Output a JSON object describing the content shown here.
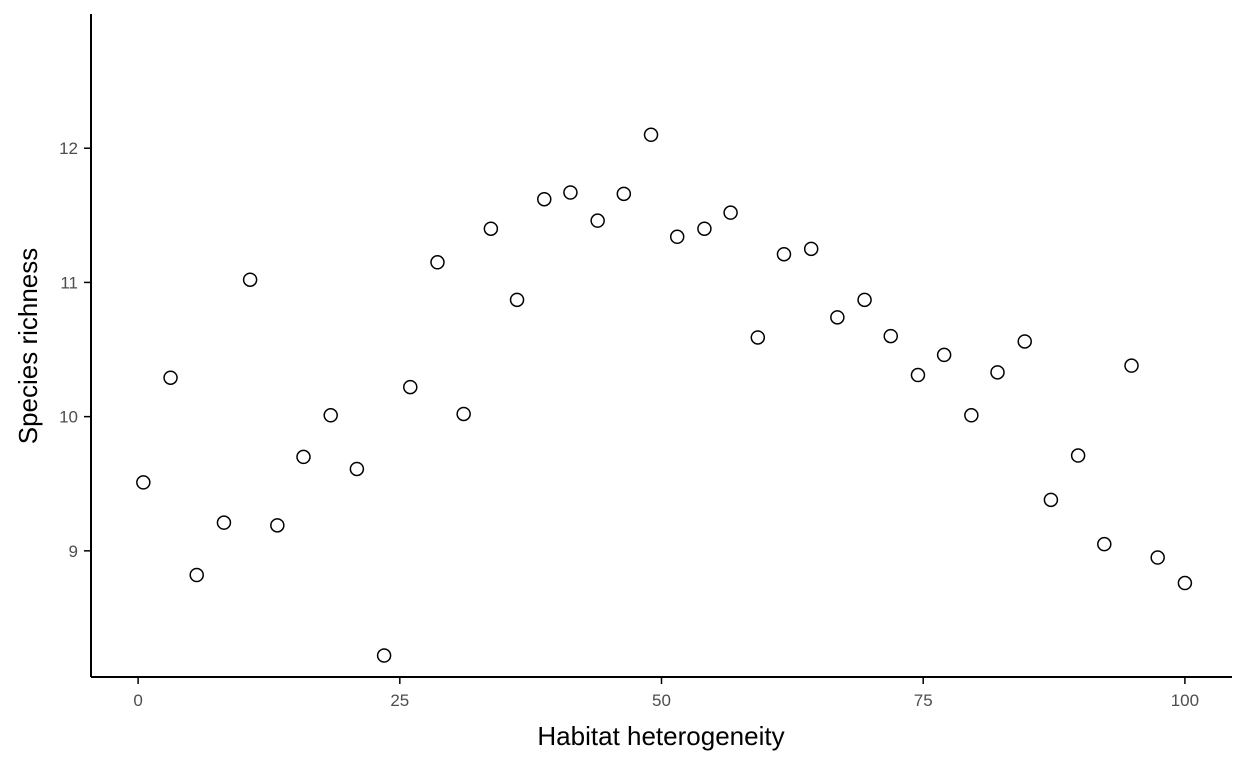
{
  "chart_data": {
    "type": "scatter",
    "title": "",
    "xlabel": "Habitat heterogeneity",
    "ylabel": "Species richness",
    "xlim": [
      -4.5,
      104.5
    ],
    "ylim": [
      8.06,
      13.0
    ],
    "x_ticks": [
      0,
      25,
      50,
      75,
      100
    ],
    "y_ticks": [
      9,
      10,
      11,
      12
    ],
    "grid": false,
    "legend": "none",
    "marker": "open-circle",
    "colors": {
      "point_stroke": "#000000",
      "point_fill": "#ffffff",
      "axis": "#000000",
      "tick_label": "#4d4d4d"
    },
    "points": [
      {
        "x": 0.5,
        "y": 9.51
      },
      {
        "x": 3.1,
        "y": 10.29
      },
      {
        "x": 5.6,
        "y": 8.82
      },
      {
        "x": 8.2,
        "y": 9.21
      },
      {
        "x": 10.7,
        "y": 11.02
      },
      {
        "x": 13.3,
        "y": 9.19
      },
      {
        "x": 15.8,
        "y": 9.7
      },
      {
        "x": 18.4,
        "y": 10.01
      },
      {
        "x": 20.9,
        "y": 9.61
      },
      {
        "x": 23.5,
        "y": 8.22
      },
      {
        "x": 26.0,
        "y": 10.22
      },
      {
        "x": 28.6,
        "y": 11.15
      },
      {
        "x": 31.1,
        "y": 10.02
      },
      {
        "x": 33.7,
        "y": 11.4
      },
      {
        "x": 36.2,
        "y": 10.87
      },
      {
        "x": 38.8,
        "y": 11.62
      },
      {
        "x": 41.3,
        "y": 11.67
      },
      {
        "x": 43.9,
        "y": 11.46
      },
      {
        "x": 46.4,
        "y": 11.66
      },
      {
        "x": 49.0,
        "y": 12.1
      },
      {
        "x": 51.5,
        "y": 11.34
      },
      {
        "x": 54.1,
        "y": 11.4
      },
      {
        "x": 56.6,
        "y": 11.52
      },
      {
        "x": 59.2,
        "y": 10.59
      },
      {
        "x": 61.7,
        "y": 11.21
      },
      {
        "x": 64.3,
        "y": 11.25
      },
      {
        "x": 66.8,
        "y": 10.74
      },
      {
        "x": 69.4,
        "y": 10.87
      },
      {
        "x": 71.9,
        "y": 10.6
      },
      {
        "x": 74.5,
        "y": 10.31
      },
      {
        "x": 77.0,
        "y": 10.46
      },
      {
        "x": 79.6,
        "y": 10.01
      },
      {
        "x": 82.1,
        "y": 10.33
      },
      {
        "x": 84.7,
        "y": 10.56
      },
      {
        "x": 87.2,
        "y": 9.38
      },
      {
        "x": 89.8,
        "y": 9.71
      },
      {
        "x": 92.3,
        "y": 9.05
      },
      {
        "x": 94.9,
        "y": 10.38
      },
      {
        "x": 97.4,
        "y": 8.95
      },
      {
        "x": 100.0,
        "y": 8.76
      }
    ]
  }
}
